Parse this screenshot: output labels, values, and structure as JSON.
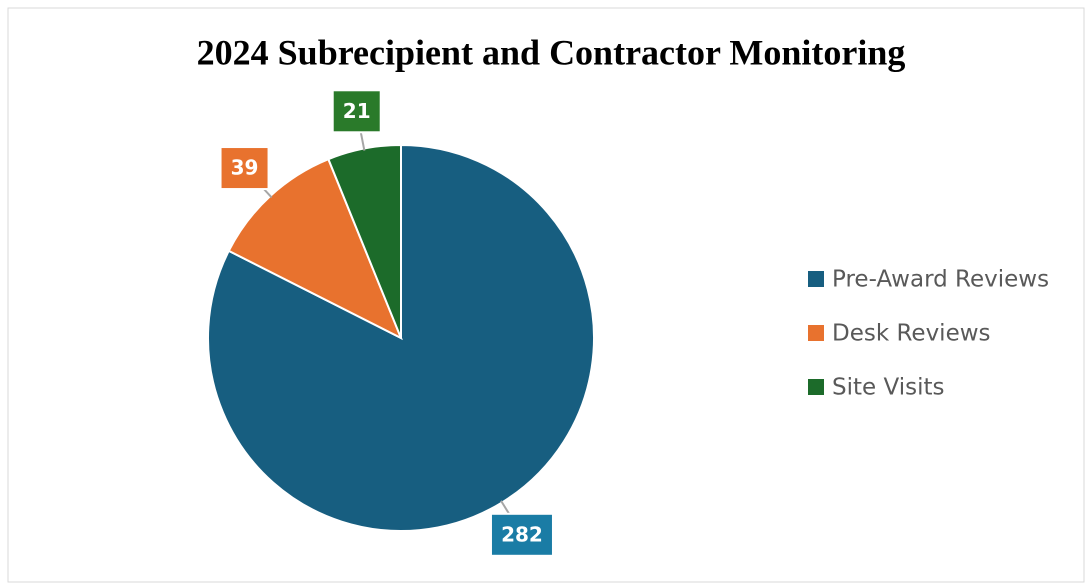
{
  "chart_data": {
    "type": "pie",
    "title": "2024 Subrecipient and Contractor Monitoring",
    "categories": [
      "Pre-Award Reviews",
      "Desk Reviews",
      "Site Visits"
    ],
    "values": [
      282,
      39,
      21
    ],
    "colors": [
      "#175e80",
      "#e8722e",
      "#1c6b2a"
    ],
    "label_colors": [
      "#1a7ca5",
      "#e8722e",
      "#2a7a2a"
    ],
    "legend": "right"
  }
}
